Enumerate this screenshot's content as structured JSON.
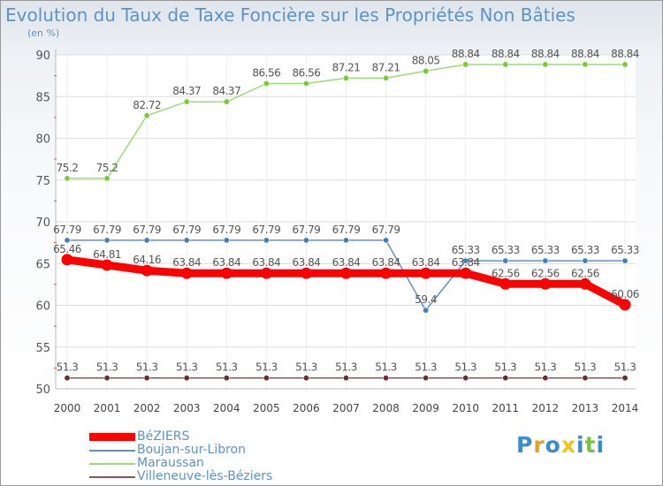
{
  "header": {
    "title": "Evolution du Taux de Taxe Foncière sur les Propriétés Non Bâties",
    "unit": "(en %)"
  },
  "legend": {
    "items": [
      {
        "label": "BéZIERS",
        "color": "#ff0000"
      },
      {
        "label": "Boujan-sur-Libron",
        "color": "#5b93c7"
      },
      {
        "label": "Maraussan",
        "color": "#99dd77"
      },
      {
        "label": "Villeneuve-lès-Béziers",
        "color": "#8a5555"
      }
    ]
  },
  "logo": {
    "text": "Proxiti"
  },
  "chart_data": {
    "type": "line",
    "title": "Evolution du Taux de Taxe Foncière sur les Propriétés Non Bâties",
    "ylabel": "(en %)",
    "xlabel": "",
    "ylim": [
      50,
      90
    ],
    "yticks": [
      50,
      55,
      60,
      65,
      70,
      75,
      80,
      85,
      90
    ],
    "grid": true,
    "legend_position": "bottom-left",
    "categories": [
      "2000",
      "2001",
      "2002",
      "2003",
      "2004",
      "2005",
      "2006",
      "2007",
      "2008",
      "2009",
      "2010",
      "2011",
      "2012",
      "2013",
      "2014"
    ],
    "series": [
      {
        "name": "Maraussan",
        "color": "#99dd77",
        "marker": "#77cc33",
        "values": [
          75.2,
          75.2,
          82.72,
          84.37,
          84.37,
          86.56,
          86.56,
          87.21,
          87.21,
          88.05,
          88.84,
          88.84,
          88.84,
          88.84,
          88.84
        ],
        "labels": [
          "75.2",
          "75.2",
          "82.72",
          "84.37",
          "84.37",
          "86.56",
          "86.56",
          "87.21",
          "87.21",
          "88.05",
          "88.84",
          "88.84",
          "88.84",
          "88.84",
          "88.84"
        ]
      },
      {
        "name": "Boujan-sur-Libron",
        "color": "#5b93c7",
        "marker": "#3f80c0",
        "values": [
          67.79,
          67.79,
          67.79,
          67.79,
          67.79,
          67.79,
          67.79,
          67.79,
          67.79,
          59.4,
          65.33,
          65.33,
          65.33,
          65.33,
          65.33
        ],
        "labels": [
          "67.79",
          "67.79",
          "67.79",
          "67.79",
          "67.79",
          "67.79",
          "67.79",
          "67.79",
          "67.79",
          "59.4",
          "65.33",
          "65.33",
          "65.33",
          "65.33",
          "65.33"
        ]
      },
      {
        "name": "BéZIERS",
        "color": "#ff0000",
        "marker": "#ff0000",
        "thick": true,
        "values": [
          65.46,
          64.81,
          64.16,
          63.84,
          63.84,
          63.84,
          63.84,
          63.84,
          63.84,
          63.84,
          63.84,
          62.56,
          62.56,
          62.56,
          60.06
        ],
        "labels": [
          "65.46",
          "64.81",
          "64.16",
          "63.84",
          "63.84",
          "63.84",
          "63.84",
          "63.84",
          "63.84",
          "63.84",
          "63.84",
          "62.56",
          "62.56",
          "62.56",
          "60.06"
        ]
      },
      {
        "name": "Villeneuve-lès-Béziers",
        "color": "#8a5555",
        "marker": "#6b2c2c",
        "values": [
          51.3,
          51.3,
          51.3,
          51.3,
          51.3,
          51.3,
          51.3,
          51.3,
          51.3,
          51.3,
          51.3,
          51.3,
          51.3,
          51.3,
          51.3
        ],
        "labels": [
          "51.3",
          "51.3",
          "51.3",
          "51.3",
          "51.3",
          "51.3",
          "51.3",
          "51.3",
          "51.3",
          "51.3",
          "51.3",
          "51.3",
          "51.3",
          "51.3",
          "51.3"
        ]
      }
    ]
  }
}
